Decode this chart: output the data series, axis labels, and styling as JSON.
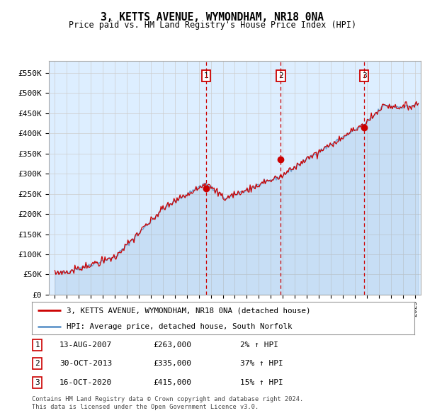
{
  "title": "3, KETTS AVENUE, WYMONDHAM, NR18 0NA",
  "subtitle": "Price paid vs. HM Land Registry's House Price Index (HPI)",
  "ylabel_ticks": [
    "£0",
    "£50K",
    "£100K",
    "£150K",
    "£200K",
    "£250K",
    "£300K",
    "£350K",
    "£400K",
    "£450K",
    "£500K",
    "£550K"
  ],
  "ytick_values": [
    0,
    50000,
    100000,
    150000,
    200000,
    250000,
    300000,
    350000,
    400000,
    450000,
    500000,
    550000
  ],
  "ylim": [
    0,
    580000
  ],
  "xlim_start": 1994.5,
  "xlim_end": 2025.5,
  "sale_dates": [
    2007.617,
    2013.833,
    2020.792
  ],
  "sale_prices": [
    263000,
    335000,
    415000
  ],
  "sale_labels": [
    "1",
    "2",
    "3"
  ],
  "sale_info": [
    {
      "label": "1",
      "date": "13-AUG-2007",
      "price": "£263,000",
      "change": "2% ↑ HPI"
    },
    {
      "label": "2",
      "date": "30-OCT-2013",
      "price": "£335,000",
      "change": "37% ↑ HPI"
    },
    {
      "label": "3",
      "date": "16-OCT-2020",
      "price": "£415,000",
      "change": "15% ↑ HPI"
    }
  ],
  "legend_line1": "3, KETTS AVENUE, WYMONDHAM, NR18 0NA (detached house)",
  "legend_line2": "HPI: Average price, detached house, South Norfolk",
  "footer1": "Contains HM Land Registry data © Crown copyright and database right 2024.",
  "footer2": "This data is licensed under the Open Government Licence v3.0.",
  "hpi_color": "#6699cc",
  "price_color": "#cc0000",
  "bg_color": "#ddeeff",
  "plot_bg": "#ffffff",
  "grid_color": "#cccccc",
  "vline_color": "#cc0000",
  "box_border_color": "#cc0000"
}
